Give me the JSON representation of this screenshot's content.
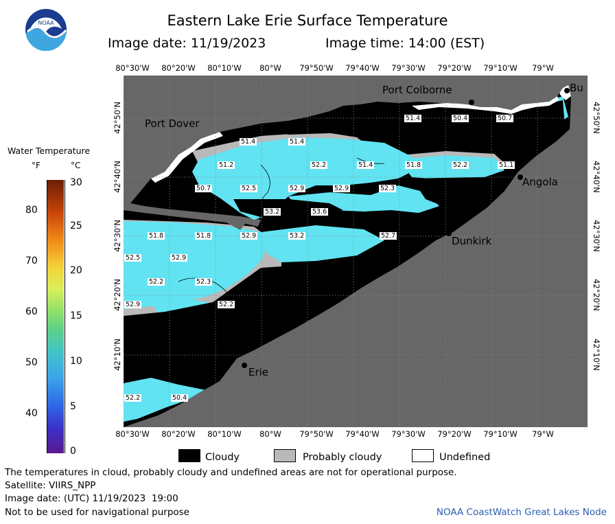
{
  "header": {
    "title": "Eastern Lake Erie Surface Temperature",
    "image_date_label": "Image date: 11/19/2023",
    "image_time_label": "Image time: 14:00 (EST)"
  },
  "logo": {
    "text": "NOAA"
  },
  "colors": {
    "water_light": "#61e3f2",
    "water_mid": "#45cde8",
    "land": "#676767",
    "cloud": "#000000",
    "probably_cloudy": "#b9b9b9",
    "undefined": "#ffffff",
    "credit": "#2a5db0"
  },
  "map": {
    "lon_labels": [
      "80°30'W",
      "80°20'W",
      "80°10'W",
      "80°W",
      "79°50'W",
      "79°40'W",
      "79°30'W",
      "79°20'W",
      "79°10'W",
      "79°W"
    ],
    "lat_labels": [
      "42°50'N",
      "42°40'N",
      "42°30'N",
      "42°20'N",
      "42°10'N"
    ],
    "cities": [
      {
        "name": "Port Colborne"
      },
      {
        "name": "Port Dover"
      },
      {
        "name": "Angola"
      },
      {
        "name": "Dunkirk"
      },
      {
        "name": "Erie"
      },
      {
        "name": "Bu"
      }
    ],
    "temperature_labels": [
      "51.4",
      "50.4",
      "50.7",
      "51.4",
      "51.4",
      "51.2",
      "52.2",
      "51.4",
      "51.8",
      "52.2",
      "51.1",
      "50.7",
      "52.5",
      "52.9",
      "52.9",
      "52.3",
      "53.2",
      "53.6",
      "51.8",
      "51.8",
      "52.9",
      "53.2",
      "52.7",
      "52.5",
      "52.9",
      "52.2",
      "52.3",
      "52.9",
      "52.2",
      "52.2",
      "50.4"
    ]
  },
  "legend": {
    "title": "Water Temperature",
    "unit_f": "°F",
    "unit_c": "°C",
    "f_ticks": [
      "80",
      "70",
      "60",
      "50",
      "40"
    ],
    "c_ticks": [
      "30",
      "25",
      "20",
      "15",
      "10",
      "5",
      "0"
    ]
  },
  "key": {
    "cloudy": "Cloudy",
    "probably_cloudy": "Probably cloudy",
    "undefined": "Undefined"
  },
  "footer": {
    "disclaimer": "The temperatures in cloud, probably cloudy and undefined areas are not for operational purpose.",
    "satellite": "Satellite: VIIRS_NPP",
    "image_date_utc": "Image date: (UTC) 11/19/2023  19:00",
    "nav_warning": "Not to be used for navigational purpose",
    "credit": "NOAA CoastWatch Great Lakes Node"
  }
}
